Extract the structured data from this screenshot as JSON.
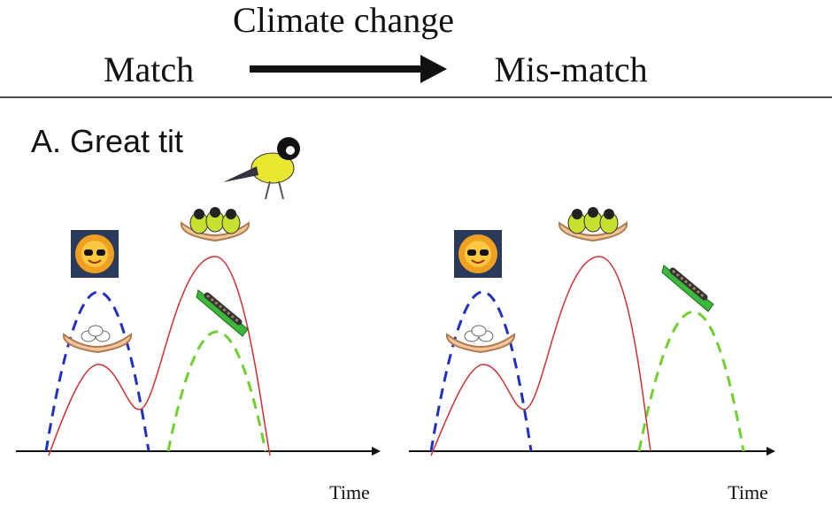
{
  "header": {
    "title": "Climate change",
    "left": "Match",
    "right": "Mis-match"
  },
  "panel": {
    "title": "A. Great tit"
  },
  "axes": {
    "left_label": "Time",
    "right_label": "Time"
  }
}
